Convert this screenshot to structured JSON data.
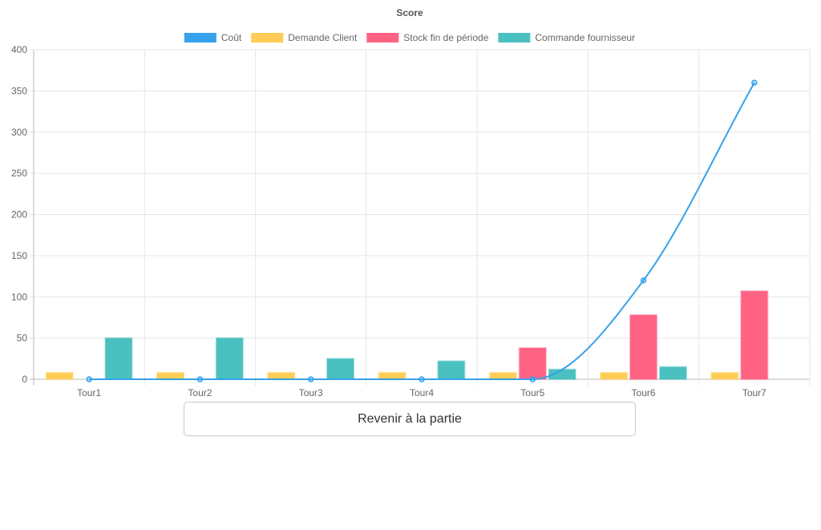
{
  "chart_data": {
    "type": "bar",
    "title": "Score",
    "categories": [
      "Tour1",
      "Tour2",
      "Tour3",
      "Tour4",
      "Tour5",
      "Tour6",
      "Tour7"
    ],
    "series": [
      {
        "name": "Coût",
        "type": "line",
        "color": "#36a2eb",
        "values": [
          0,
          0,
          0,
          0,
          0,
          120,
          360
        ]
      },
      {
        "name": "Demande Client",
        "type": "bar",
        "color": "#ffcd56",
        "values": [
          8,
          8,
          8,
          8,
          8,
          8,
          8
        ]
      },
      {
        "name": "Stock fin de période",
        "type": "bar",
        "color": "#ff6384",
        "values": [
          0,
          0,
          0,
          0,
          38,
          78,
          107
        ]
      },
      {
        "name": "Commande fournisseur",
        "type": "bar",
        "color": "#4bc0c0",
        "values": [
          50,
          50,
          25,
          22,
          12,
          15,
          0
        ]
      }
    ],
    "yticks": [
      0,
      50,
      100,
      150,
      200,
      250,
      300,
      350,
      400
    ],
    "ylim": [
      0,
      400
    ],
    "xlabel": "",
    "ylabel": "",
    "grid": true,
    "legend": "top-center"
  },
  "back_button": {
    "label": "Revenir à la partie"
  }
}
